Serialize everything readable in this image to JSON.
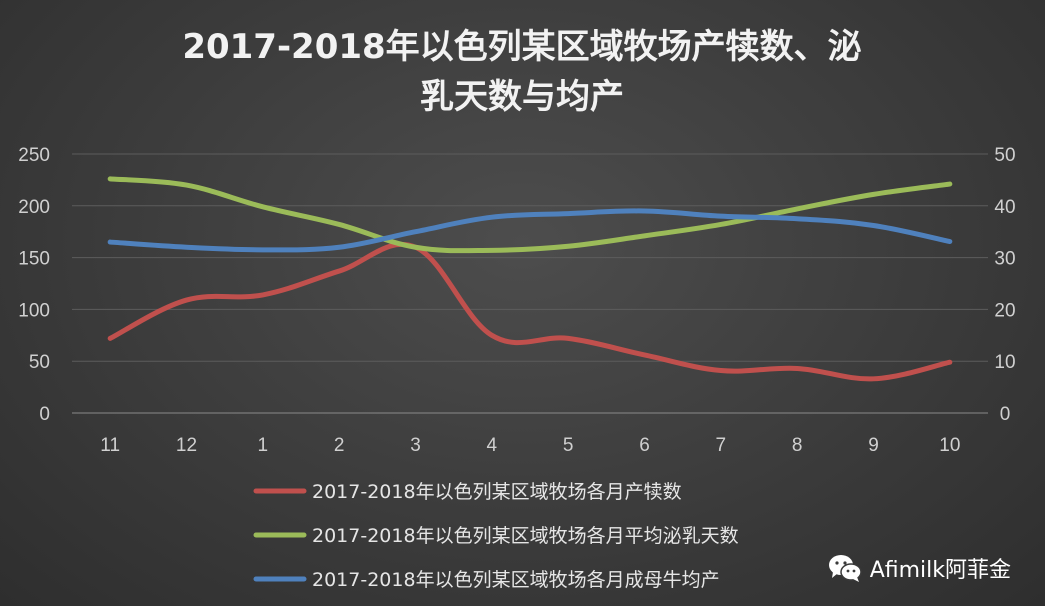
{
  "chart_data": {
    "type": "line",
    "title_lines": [
      "2017-2018年以色列某区域牧场产犊数、泌",
      "乳天数与均产"
    ],
    "categories": [
      "11",
      "12",
      "1",
      "2",
      "3",
      "4",
      "5",
      "6",
      "7",
      "8",
      "9",
      "10"
    ],
    "y_left": {
      "min": 0,
      "max": 250,
      "ticks": [
        "0",
        "50",
        "100",
        "150",
        "200",
        "250"
      ]
    },
    "y_right": {
      "min": 0,
      "max": 50,
      "ticks": [
        "0",
        "10",
        "20",
        "30",
        "40",
        "50"
      ]
    },
    "grid": true,
    "legend_position": "bottom",
    "series": [
      {
        "name": "2017-2018年以色列某区域牧场各月产犊数",
        "axis": "left",
        "color": "#c0504d",
        "values": [
          72,
          109,
          114,
          137,
          160,
          75,
          72,
          56,
          41,
          43,
          33,
          49
        ]
      },
      {
        "name": "2017-2018年以色列某区域牧场各月平均泌乳天数",
        "axis": "left",
        "color": "#9bbb59",
        "values": [
          226,
          220,
          199,
          182,
          160,
          157,
          161,
          171,
          182,
          197,
          211,
          221
        ]
      },
      {
        "name": "2017-2018年以色列某区域牧场各月成母牛均产",
        "axis": "right",
        "color": "#4f81bd",
        "values": [
          33,
          32,
          31.5,
          32,
          35,
          37.8,
          38.5,
          39,
          38,
          37.5,
          36.2,
          33.1
        ]
      }
    ]
  },
  "watermark": {
    "text": "Afimilk阿菲金",
    "icon": "wechat-icon"
  }
}
